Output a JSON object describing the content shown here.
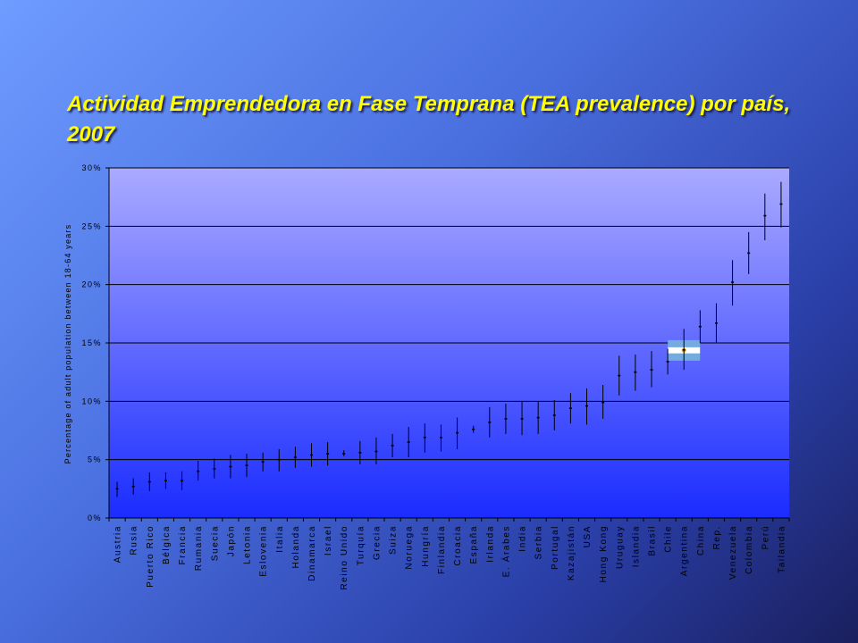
{
  "title": "Actividad Emprendedora en Fase Temprana (TEA prevalence) por país, 2007",
  "chart_data": {
    "type": "errorbar",
    "title": "Actividad Emprendedora en Fase Temprana (TEA prevalence) por país, 2007",
    "ylabel": "Percentage of adult population between 18-64 years",
    "ylim": [
      0,
      30
    ],
    "yticks": [
      "0%",
      "5%",
      "10%",
      "15%",
      "20%",
      "25%",
      "30%"
    ],
    "highlight": "Argentina",
    "highlight_flag_colors": [
      "#74acdf",
      "#ffffff",
      "#74acdf"
    ],
    "plot_colors": {
      "top": "#aaaaff",
      "bottom": "#1a2cff"
    },
    "categories": [
      "Austria",
      "Rusia",
      "Puerto Rico",
      "Bélgica",
      "Francia",
      "Rumania",
      "Suecia",
      "Japón",
      "Letonia",
      "Eslovenia",
      "Italia",
      "Holanda",
      "Dinamarca",
      "Israel",
      "Reino Unido",
      "Turquía",
      "Grecia",
      "Suiza",
      "Noruega",
      "Hungría",
      "Finlandia",
      "Croacia",
      "España",
      "Irlanda",
      "E. Árabes",
      "India",
      "Serbia",
      "Portugal",
      "Kazajistán",
      "USA",
      "Hong Kong",
      "Uruguay",
      "Islandia",
      "Brasil",
      "Chile",
      "Argentina",
      "China",
      "Rep.",
      "Venezuela",
      "Colombia",
      "Perú",
      "Tailandia"
    ],
    "values": [
      2.5,
      2.7,
      3.1,
      3.2,
      3.2,
      4.0,
      4.2,
      4.4,
      4.5,
      4.8,
      5.0,
      5.2,
      5.4,
      5.5,
      5.5,
      5.6,
      5.7,
      6.2,
      6.5,
      6.9,
      6.9,
      7.3,
      7.6,
      8.2,
      8.5,
      8.5,
      8.6,
      8.8,
      9.4,
      9.6,
      9.9,
      12.2,
      12.5,
      12.7,
      13.4,
      14.4,
      16.4,
      16.7,
      20.2,
      22.7,
      25.9,
      26.9
    ],
    "lower": [
      1.8,
      2.0,
      2.3,
      2.5,
      2.4,
      3.2,
      3.4,
      3.4,
      3.5,
      4.0,
      4.0,
      4.3,
      4.4,
      4.5,
      5.3,
      4.6,
      4.6,
      5.2,
      5.2,
      5.6,
      5.7,
      5.9,
      7.3,
      6.9,
      7.2,
      7.1,
      7.2,
      7.5,
      8.1,
      8.0,
      8.5,
      10.5,
      10.9,
      11.2,
      12.3,
      12.7,
      15.0,
      15.0,
      18.2,
      20.9,
      23.8,
      24.9
    ],
    "upper": [
      3.1,
      3.4,
      3.9,
      3.9,
      4.0,
      4.9,
      5.1,
      5.4,
      5.5,
      5.6,
      5.9,
      6.1,
      6.4,
      6.5,
      5.8,
      6.6,
      6.9,
      7.2,
      7.8,
      8.1,
      8.0,
      8.6,
      7.9,
      9.5,
      9.8,
      10.0,
      10.0,
      10.1,
      10.7,
      11.1,
      11.4,
      13.9,
      14.0,
      14.3,
      14.5,
      16.2,
      17.8,
      18.4,
      22.1,
      24.5,
      27.8,
      28.8
    ]
  }
}
